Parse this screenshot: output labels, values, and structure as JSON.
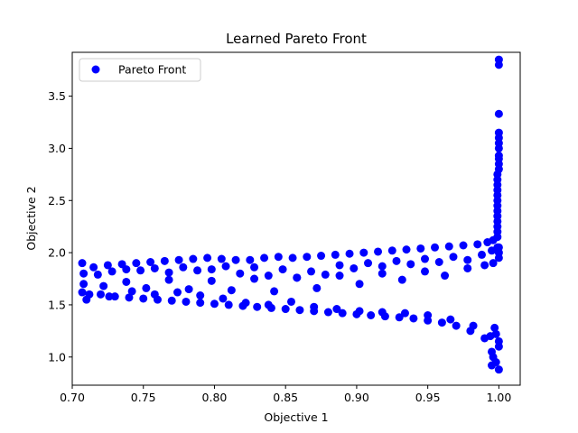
{
  "chart_data": {
    "type": "scatter",
    "title": "Learned Pareto Front",
    "xlabel": "Objective 1",
    "ylabel": "Objective 2",
    "xlim": [
      0.7,
      1.015
    ],
    "ylim": [
      0.73,
      3.92
    ],
    "xticks": [
      0.7,
      0.75,
      0.8,
      0.85,
      0.9,
      0.95,
      1.0
    ],
    "xtick_labels": [
      "0.70",
      "0.75",
      "0.80",
      "0.85",
      "0.90",
      "0.95",
      "1.00"
    ],
    "yticks": [
      1.0,
      1.5,
      2.0,
      2.5,
      3.0,
      3.5
    ],
    "ytick_labels": [
      "1.0",
      "1.5",
      "2.0",
      "2.5",
      "3.0",
      "3.5"
    ],
    "grid": false,
    "legend": {
      "position": "upper-left",
      "entries": [
        "Pareto Front"
      ]
    },
    "series": [
      {
        "name": "Pareto Front",
        "color": "#0000ff",
        "x": [
          0.707,
          0.712,
          0.72,
          0.73,
          0.74,
          0.75,
          0.76,
          0.77,
          0.78,
          0.79,
          0.8,
          0.81,
          0.82,
          0.83,
          0.84,
          0.85,
          0.86,
          0.87,
          0.88,
          0.89,
          0.9,
          0.91,
          0.92,
          0.93,
          0.94,
          0.95,
          0.96,
          0.97,
          0.98,
          0.99,
          0.995,
          0.998,
          1.0,
          0.707,
          0.715,
          0.725,
          0.735,
          0.745,
          0.755,
          0.765,
          0.775,
          0.785,
          0.795,
          0.805,
          0.815,
          0.825,
          0.835,
          0.845,
          0.855,
          0.865,
          0.875,
          0.885,
          0.895,
          0.905,
          0.915,
          0.925,
          0.935,
          0.945,
          0.955,
          0.965,
          0.975,
          0.985,
          0.992,
          0.996,
          0.999,
          0.708,
          0.722,
          0.738,
          0.752,
          0.768,
          0.782,
          0.798,
          0.812,
          0.828,
          0.842,
          0.858,
          0.872,
          0.888,
          0.902,
          0.918,
          0.932,
          0.948,
          0.962,
          0.978,
          0.99,
          0.996,
          0.708,
          0.718,
          0.728,
          0.738,
          0.748,
          0.758,
          0.768,
          0.778,
          0.788,
          0.798,
          0.808,
          0.818,
          0.828,
          0.838,
          0.848,
          0.858,
          0.868,
          0.878,
          0.888,
          0.898,
          0.908,
          0.918,
          0.928,
          0.938,
          0.948,
          0.958,
          0.968,
          0.978,
          0.988,
          0.995,
          0.999,
          0.71,
          0.726,
          0.742,
          0.758,
          0.774,
          0.79,
          0.806,
          0.822,
          0.838,
          0.854,
          0.87,
          0.886,
          0.902,
          0.918,
          0.934,
          0.95,
          0.966,
          0.982,
          0.994,
          0.999,
          0.999,
          0.999,
          0.999,
          0.999,
          0.999,
          0.999,
          0.999,
          0.999,
          0.999,
          0.999,
          0.999,
          1.0,
          1.0,
          1.0,
          1.0,
          1.0,
          1.0,
          1.0,
          1.0,
          1.0,
          1.0,
          1.0,
          1.0,
          1.0,
          1.0,
          1.0,
          1.0,
          0.998,
          0.997,
          0.996,
          0.995
        ],
        "y": [
          1.62,
          1.6,
          1.6,
          1.58,
          1.57,
          1.56,
          1.55,
          1.54,
          1.53,
          1.52,
          1.51,
          1.5,
          1.49,
          1.48,
          1.47,
          1.46,
          1.45,
          1.44,
          1.43,
          1.42,
          1.41,
          1.4,
          1.39,
          1.38,
          1.37,
          1.35,
          1.33,
          1.3,
          1.25,
          1.18,
          1.05,
          0.95,
          0.88,
          1.9,
          1.86,
          1.88,
          1.89,
          1.9,
          1.91,
          1.92,
          1.93,
          1.94,
          1.95,
          1.94,
          1.93,
          1.93,
          1.95,
          1.96,
          1.95,
          1.96,
          1.97,
          1.98,
          1.99,
          2.0,
          2.01,
          2.02,
          2.03,
          2.04,
          2.05,
          2.06,
          2.07,
          2.08,
          2.1,
          2.12,
          2.15,
          1.7,
          1.68,
          1.72,
          1.66,
          1.74,
          1.65,
          1.73,
          1.64,
          1.75,
          1.63,
          1.76,
          1.66,
          1.78,
          1.7,
          1.8,
          1.74,
          1.82,
          1.78,
          1.85,
          1.88,
          1.9,
          1.8,
          1.79,
          1.82,
          1.84,
          1.83,
          1.85,
          1.81,
          1.86,
          1.83,
          1.84,
          1.87,
          1.8,
          1.86,
          1.78,
          1.84,
          1.76,
          1.82,
          1.79,
          1.88,
          1.85,
          1.9,
          1.87,
          1.92,
          1.89,
          1.94,
          1.91,
          1.96,
          1.93,
          1.98,
          2.02,
          2.05,
          1.55,
          1.58,
          1.63,
          1.6,
          1.62,
          1.59,
          1.56,
          1.52,
          1.5,
          1.53,
          1.48,
          1.46,
          1.44,
          1.43,
          1.42,
          1.4,
          1.36,
          1.3,
          1.2,
          2.2,
          2.25,
          2.3,
          2.35,
          2.4,
          2.45,
          2.5,
          2.55,
          2.6,
          2.65,
          2.7,
          2.75,
          2.8,
          2.85,
          2.9,
          2.93,
          3.0,
          3.05,
          3.1,
          3.15,
          3.33,
          3.8,
          3.85,
          1.95,
          2.0,
          2.05,
          1.1,
          1.15,
          1.22,
          1.28,
          1.0,
          0.92
        ]
      }
    ]
  }
}
